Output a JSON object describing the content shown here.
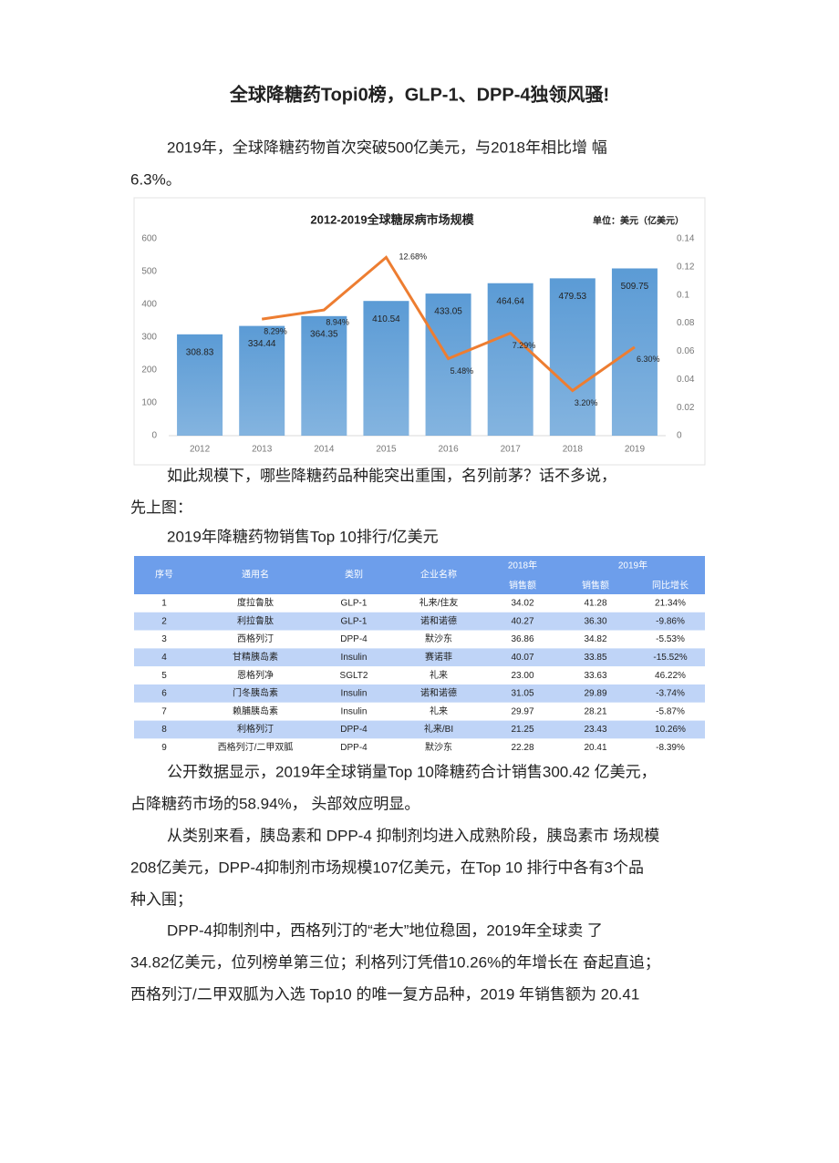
{
  "title": "全球降糖药Topi0榜，GLP-1、DPP-4独领风骚!",
  "intro": [
    "2019年，全球降糖药物首次突破500亿美元，与2018年相比增 幅",
    "6.3%。"
  ],
  "chart_data": {
    "type": "bar",
    "title": "2012-2019全球糖尿病市场规模",
    "unit_note": "单位：美元（亿美元）",
    "categories": [
      "2012",
      "2013",
      "2014",
      "2015",
      "2016",
      "2017",
      "2018",
      "2019"
    ],
    "series": [
      {
        "type": "bar",
        "color": "#5b9bd5",
        "values": [
          308.83,
          334.44,
          364.35,
          410.54,
          433.05,
          464.64,
          479.53,
          509.75
        ]
      },
      {
        "type": "line",
        "axis": "y2",
        "color": "#ed7d31",
        "values": [
          null,
          0.0829,
          0.0894,
          0.1268,
          0.0548,
          0.0729,
          0.032,
          0.063
        ],
        "value_labels": [
          null,
          "8.29%",
          "8.94%",
          "12.68%",
          "5.48%",
          "7.29%",
          "3.20%",
          "6.30%"
        ]
      }
    ],
    "ylim": [
      0,
      600
    ],
    "yticks": [
      0,
      100,
      200,
      300,
      400,
      500,
      600
    ],
    "y2lim": [
      0,
      0.14
    ],
    "y2ticks": [
      0,
      0.02,
      0.04,
      0.06,
      0.08,
      0.1,
      0.12,
      0.14
    ],
    "grid": false
  },
  "lead": [
    "如此规模下，哪些降糖药品种能突出重围，名列前茅？话不多说，",
    "先上图："
  ],
  "table_caption": "2019年降糖药物销售Top 10排行/亿美元",
  "table": {
    "header_top": [
      "序号",
      "通用名",
      "类别",
      "企业名称",
      "2018年",
      "2019年"
    ],
    "header_sub": [
      "销售额",
      "销售额",
      "同比增长"
    ],
    "rows": [
      [
        "1",
        "度拉鲁肽",
        "GLP-1",
        "礼来/住友",
        "34.02",
        "41.28",
        "21.34%"
      ],
      [
        "2",
        "利拉鲁肽",
        "GLP-1",
        "诺和诺德",
        "40.27",
        "36.30",
        "-9.86%"
      ],
      [
        "3",
        "西格列汀",
        "DPP-4",
        "默沙东",
        "36.86",
        "34.82",
        "-5.53%"
      ],
      [
        "4",
        "甘精胰岛素",
        "Insulin",
        "赛诺菲",
        "40.07",
        "33.85",
        "-15.52%"
      ],
      [
        "5",
        "恩格列净",
        "SGLT2",
        "礼来",
        "23.00",
        "33.63",
        "46.22%"
      ],
      [
        "6",
        "门冬胰岛素",
        "Insulin",
        "诺和诺德",
        "31.05",
        "29.89",
        "-3.74%"
      ],
      [
        "7",
        "赖脯胰岛素",
        "Insulin",
        "礼来",
        "29.97",
        "28.21",
        "-5.87%"
      ],
      [
        "8",
        "利格列汀",
        "DPP-4",
        "礼来/BI",
        "21.25",
        "23.43",
        "10.26%"
      ],
      [
        "9",
        "西格列汀/二甲双胍",
        "DPP-4",
        "默沙东",
        "22.28",
        "20.41",
        "-8.39%"
      ]
    ]
  },
  "body": [
    [
      "公开数据显示，2019年全球销量Top 10降糖药合计销售300.42 亿美元，",
      "占降糖药市场的58.94%， 头部效应明显。"
    ],
    [
      "从类别来看，胰岛素和 DPP-4 抑制剂均进入成熟阶段，胰岛素市 场规模",
      "208亿美元，DPP-4抑制剂市场规模107亿美元，在Top 10 排行中各有3个品",
      "种入围；"
    ],
    [
      "DPP-4抑制剂中，西格列汀的“老大”地位稳固，2019年全球卖 了",
      "34.82亿美元，位列榜单第三位；利格列汀凭借10.26%的年增长在 奋起直追；",
      "西格列汀/二甲双胍为入选 Top10 的唯一复方品种，2019 年销售额为 20.41"
    ]
  ]
}
